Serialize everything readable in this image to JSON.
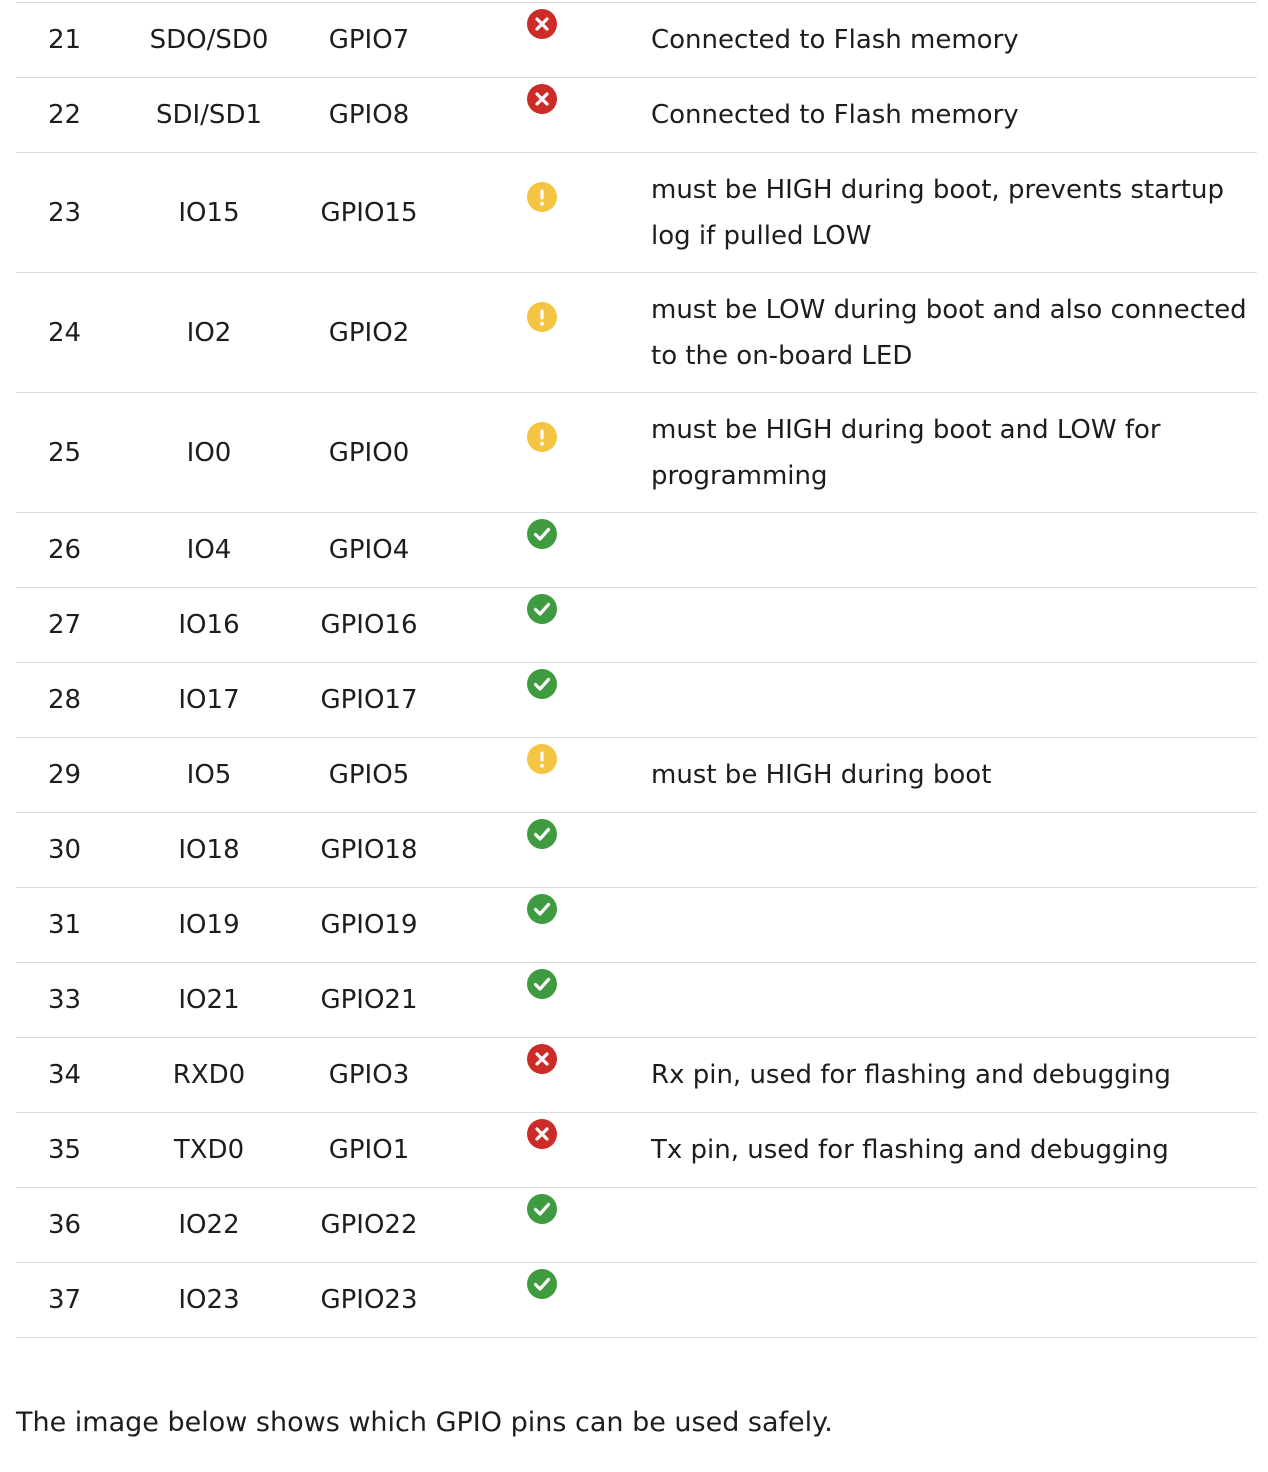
{
  "status_legend": {
    "ok": {
      "icon": "check-circle-icon",
      "color": "#3f9b3f"
    },
    "warn": {
      "icon": "exclamation-circle-icon",
      "color": "#f4c542"
    },
    "bad": {
      "icon": "x-circle-icon",
      "color": "#cc2b27"
    }
  },
  "rows": [
    {
      "pin": "21",
      "name": "SDO/SD0",
      "gpio": "GPIO7",
      "status": "bad",
      "note": "Connected to Flash memory"
    },
    {
      "pin": "22",
      "name": "SDI/SD1",
      "gpio": "GPIO8",
      "status": "bad",
      "note": "Connected to Flash memory"
    },
    {
      "pin": "23",
      "name": "IO15",
      "gpio": "GPIO15",
      "status": "warn",
      "note": "must be HIGH during boot, prevents startup log if pulled LOW"
    },
    {
      "pin": "24",
      "name": "IO2",
      "gpio": "GPIO2",
      "status": "warn",
      "note": "must be LOW during boot and also connected to the on-board LED"
    },
    {
      "pin": "25",
      "name": "IO0",
      "gpio": "GPIO0",
      "status": "warn",
      "note": "must be HIGH during boot and LOW for programming"
    },
    {
      "pin": "26",
      "name": "IO4",
      "gpio": "GPIO4",
      "status": "ok",
      "note": ""
    },
    {
      "pin": "27",
      "name": "IO16",
      "gpio": "GPIO16",
      "status": "ok",
      "note": ""
    },
    {
      "pin": "28",
      "name": "IO17",
      "gpio": "GPIO17",
      "status": "ok",
      "note": ""
    },
    {
      "pin": "29",
      "name": "IO5",
      "gpio": "GPIO5",
      "status": "warn",
      "note": "must be HIGH during boot"
    },
    {
      "pin": "30",
      "name": "IO18",
      "gpio": "GPIO18",
      "status": "ok",
      "note": ""
    },
    {
      "pin": "31",
      "name": "IO19",
      "gpio": "GPIO19",
      "status": "ok",
      "note": ""
    },
    {
      "pin": "33",
      "name": "IO21",
      "gpio": "GPIO21",
      "status": "ok",
      "note": ""
    },
    {
      "pin": "34",
      "name": "RXD0",
      "gpio": "GPIO3",
      "status": "bad",
      "note": "Rx pin, used for flashing and debugging"
    },
    {
      "pin": "35",
      "name": "TXD0",
      "gpio": "GPIO1",
      "status": "bad",
      "note": "Tx pin, used for flashing and debugging"
    },
    {
      "pin": "36",
      "name": "IO22",
      "gpio": "GPIO22",
      "status": "ok",
      "note": ""
    },
    {
      "pin": "37",
      "name": "IO23",
      "gpio": "GPIO23",
      "status": "ok",
      "note": ""
    }
  ],
  "caption": "The image below shows which GPIO pins can be used safely."
}
